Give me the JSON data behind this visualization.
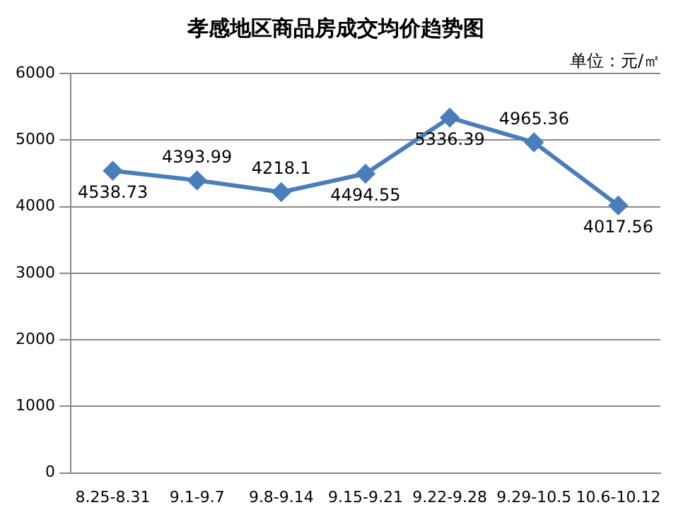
{
  "chart_data": {
    "type": "line",
    "title": "孝感地区商品房成交均价趋势图",
    "annotations": [
      "单位：元/㎡"
    ],
    "categories": [
      "8.25-8.31",
      "9.1-9.7",
      "9.8-9.14",
      "9.15-9.21",
      "9.22-9.28",
      "9.29-10.5",
      "10.6-10.12"
    ],
    "series": [
      {
        "color": "#4a7ebb",
        "values": [
          4538.73,
          4393.99,
          4218.1,
          4494.55,
          5336.39,
          4965.36,
          4017.56
        ]
      }
    ],
    "ylim": [
      0,
      6000
    ],
    "yticks": [
      0,
      1000,
      2000,
      3000,
      4000,
      5000,
      6000
    ],
    "grid": "y",
    "legend": false,
    "marker": "diamond",
    "line_style": "solid",
    "data_labels": true
  }
}
